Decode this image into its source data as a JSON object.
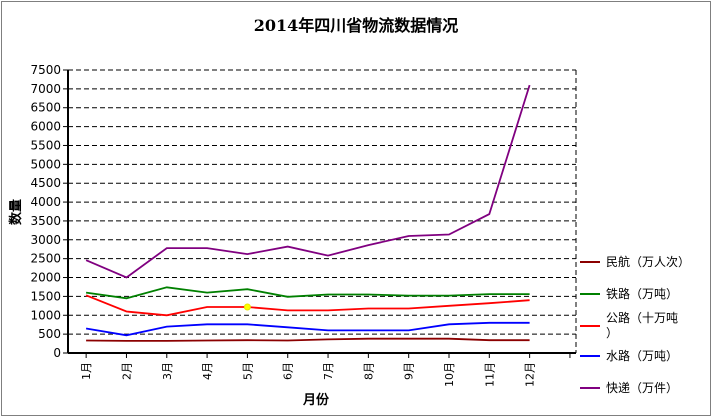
{
  "chart_data": {
    "type": "line",
    "title": "2014年四川省物流数据情况",
    "xlabel": "月份",
    "ylabel": "数量",
    "ylim": [
      0,
      7500
    ],
    "yticks": [
      0,
      500,
      1000,
      1500,
      2000,
      2500,
      3000,
      3500,
      4000,
      4500,
      5000,
      5500,
      6000,
      6500,
      7000,
      7500
    ],
    "categories": [
      "1月",
      "2月",
      "3月",
      "4月",
      "5月",
      "6月",
      "7月",
      "8月",
      "9月",
      "10月",
      "11月",
      "12月"
    ],
    "grid": true,
    "legend_position": "right",
    "series": [
      {
        "name": "民航（万人次）",
        "color": "#8b0000",
        "values": [
          330,
          320,
          320,
          330,
          340,
          330,
          360,
          380,
          380,
          380,
          340,
          340
        ]
      },
      {
        "name": "铁路（万吨）",
        "color": "#008000",
        "values": [
          1600,
          1450,
          1740,
          1600,
          1690,
          1490,
          1550,
          1550,
          1520,
          1520,
          1560,
          1560
        ]
      },
      {
        "name": "公路（十万吨）",
        "color": "#ff0000",
        "values": [
          1530,
          1100,
          1000,
          1220,
          1220,
          1130,
          1130,
          1180,
          1180,
          1250,
          1320,
          1400
        ]
      },
      {
        "name": "水路（万吨）",
        "color": "#0000ff",
        "values": [
          650,
          470,
          700,
          760,
          760,
          680,
          600,
          600,
          600,
          760,
          800,
          800
        ]
      },
      {
        "name": "快递（万件）",
        "color": "#800080",
        "values": [
          2460,
          2000,
          2780,
          2780,
          2620,
          2820,
          2580,
          2860,
          3100,
          3140,
          3680,
          7100
        ]
      }
    ]
  }
}
